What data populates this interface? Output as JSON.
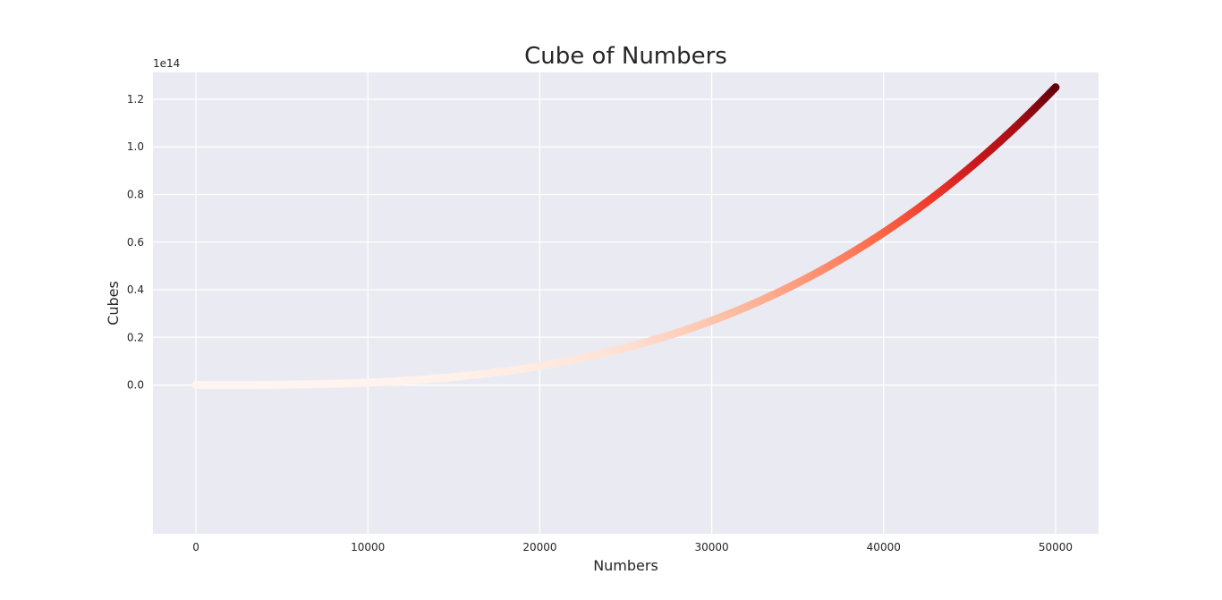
{
  "chart_data": {
    "type": "scatter",
    "title": "Cube of Numbers",
    "xlabel": "Numbers",
    "ylabel": "Cubes",
    "x_range": [
      1,
      50000
    ],
    "formula": "y = x^3",
    "xlim": [
      -2500,
      52500
    ],
    "ylim": [
      -62500000000000.0,
      131250000000000.0
    ],
    "y_offset_text": "1e14",
    "x_ticks": [
      0,
      10000,
      20000,
      30000,
      40000,
      50000
    ],
    "x_tick_labels": [
      "0",
      "10000",
      "20000",
      "30000",
      "40000",
      "50000"
    ],
    "y_ticks": [
      0,
      20000000000000.0,
      40000000000000.0,
      60000000000000.0,
      80000000000000.0,
      100000000000000.0,
      120000000000000.0
    ],
    "y_tick_labels": [
      "0.0",
      "0.2",
      "0.4",
      "0.6",
      "0.8",
      "1.0",
      "1.2"
    ],
    "colormap": "Reds",
    "colors": {
      "background": "#eaeaf2",
      "grid": "#ffffff",
      "text": "#262626",
      "cmap_low": "#fff5f0",
      "cmap_mid": "#fb6a4a",
      "cmap_high": "#67000d"
    },
    "grid": true
  }
}
